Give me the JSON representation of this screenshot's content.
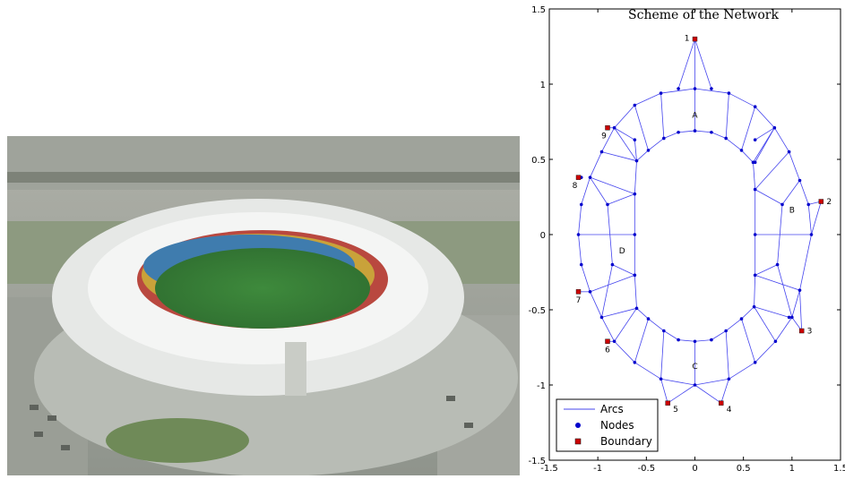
{
  "photo": {
    "description_icon": "stadium-aerial-photo-icon"
  },
  "chart_data": {
    "type": "scatter",
    "title": "Scheme of the Network",
    "xlim": [
      -1.5,
      1.5
    ],
    "ylim": [
      -1.5,
      1.5
    ],
    "xticks": [
      "-1.5",
      "-1",
      "-0.5",
      "0",
      "0.5",
      "1",
      "1.5"
    ],
    "yticks": [
      "-1.5",
      "-1",
      "-0.5",
      "0",
      "0.5",
      "1",
      "1.5"
    ],
    "legend": {
      "placement": "bottom-left",
      "entries": [
        {
          "label": "Arcs",
          "color": "#4444ee"
        },
        {
          "label": "Nodes",
          "color": "#0000cc"
        },
        {
          "label": "Boundary",
          "color": "#cc0000"
        }
      ]
    },
    "region_labels": [
      {
        "text": "A",
        "x": 0.0,
        "y": 0.8
      },
      {
        "text": "B",
        "x": 1.0,
        "y": 0.17
      },
      {
        "text": "C",
        "x": 0.0,
        "y": -0.87
      },
      {
        "text": "D",
        "x": -0.75,
        "y": -0.1
      }
    ],
    "boundary": [
      {
        "label": "1",
        "x": 0.0,
        "y": 1.3
      },
      {
        "label": "2",
        "x": 1.3,
        "y": 0.22
      },
      {
        "label": "3",
        "x": 1.1,
        "y": -0.64
      },
      {
        "label": "4",
        "x": 0.27,
        "y": -1.12
      },
      {
        "label": "5",
        "x": -0.28,
        "y": -1.12
      },
      {
        "label": "7",
        "x": -1.2,
        "y": -0.38
      },
      {
        "label": "6",
        "x": -0.9,
        "y": -0.71
      },
      {
        "label": "8",
        "x": -1.2,
        "y": 0.38
      },
      {
        "label": "9",
        "x": -0.9,
        "y": 0.71
      }
    ],
    "outer_ring": [
      [
        0.0,
        0.97
      ],
      [
        0.35,
        0.94
      ],
      [
        0.62,
        0.85
      ],
      [
        0.82,
        0.71
      ],
      [
        0.97,
        0.55
      ],
      [
        1.08,
        0.36
      ],
      [
        1.17,
        0.2
      ],
      [
        1.2,
        0.0
      ],
      [
        1.08,
        -0.37
      ],
      [
        1.0,
        -0.55
      ],
      [
        0.83,
        -0.71
      ],
      [
        0.62,
        -0.85
      ],
      [
        0.35,
        -0.96
      ],
      [
        0.0,
        -1.0
      ],
      [
        -0.35,
        -0.96
      ],
      [
        -0.62,
        -0.85
      ],
      [
        -0.83,
        -0.71
      ],
      [
        -0.96,
        -0.55
      ],
      [
        -1.08,
        -0.38
      ],
      [
        -1.17,
        -0.2
      ],
      [
        -1.2,
        0.0
      ],
      [
        -1.17,
        0.2
      ],
      [
        -1.08,
        0.38
      ],
      [
        -0.96,
        0.55
      ],
      [
        -0.83,
        0.71
      ],
      [
        -0.62,
        0.86
      ],
      [
        -0.35,
        0.94
      ]
    ],
    "inner_ring": [
      [
        0.0,
        0.69
      ],
      [
        0.17,
        0.68
      ],
      [
        0.32,
        0.64
      ],
      [
        0.48,
        0.56
      ],
      [
        0.6,
        0.48
      ],
      [
        0.62,
        0.3
      ],
      [
        0.62,
        0.0
      ],
      [
        0.62,
        -0.27
      ],
      [
        0.61,
        -0.48
      ],
      [
        0.48,
        -0.56
      ],
      [
        0.32,
        -0.64
      ],
      [
        0.17,
        -0.7
      ],
      [
        0.0,
        -0.71
      ],
      [
        -0.17,
        -0.7
      ],
      [
        -0.32,
        -0.64
      ],
      [
        -0.48,
        -0.56
      ],
      [
        -0.6,
        -0.49
      ],
      [
        -0.62,
        -0.27
      ],
      [
        -0.62,
        0.0
      ],
      [
        -0.62,
        0.27
      ],
      [
        -0.6,
        0.49
      ],
      [
        -0.48,
        0.56
      ],
      [
        -0.32,
        0.64
      ],
      [
        -0.17,
        0.68
      ]
    ],
    "spokes": [
      [
        [
          0.0,
          0.97
        ],
        [
          0.0,
          0.69
        ]
      ],
      [
        [
          0.35,
          0.94
        ],
        [
          0.32,
          0.64
        ]
      ],
      [
        [
          0.62,
          0.85
        ],
        [
          0.48,
          0.56
        ]
      ],
      [
        [
          0.82,
          0.71
        ],
        [
          0.6,
          0.48
        ]
      ],
      [
        [
          0.97,
          0.55
        ],
        [
          0.62,
          0.3
        ]
      ],
      [
        [
          1.2,
          0.0
        ],
        [
          0.62,
          0.0
        ]
      ],
      [
        [
          1.08,
          -0.37
        ],
        [
          0.62,
          -0.27
        ]
      ],
      [
        [
          0.83,
          -0.71
        ],
        [
          0.61,
          -0.48
        ]
      ],
      [
        [
          0.62,
          -0.85
        ],
        [
          0.48,
          -0.56
        ]
      ],
      [
        [
          0.35,
          -0.96
        ],
        [
          0.32,
          -0.64
        ]
      ],
      [
        [
          0.0,
          -1.0
        ],
        [
          0.0,
          -0.71
        ]
      ],
      [
        [
          -0.35,
          -0.96
        ],
        [
          -0.32,
          -0.64
        ]
      ],
      [
        [
          -0.62,
          -0.85
        ],
        [
          -0.48,
          -0.56
        ]
      ],
      [
        [
          -0.83,
          -0.71
        ],
        [
          -0.6,
          -0.49
        ]
      ],
      [
        [
          -1.08,
          -0.38
        ],
        [
          -0.62,
          -0.27
        ]
      ],
      [
        [
          -1.2,
          0.0
        ],
        [
          -0.62,
          0.0
        ]
      ],
      [
        [
          -1.08,
          0.38
        ],
        [
          -0.62,
          0.27
        ]
      ],
      [
        [
          -0.83,
          0.71
        ],
        [
          -0.6,
          0.49
        ]
      ],
      [
        [
          -0.62,
          0.86
        ],
        [
          -0.48,
          0.56
        ]
      ],
      [
        [
          -0.35,
          0.94
        ],
        [
          -0.32,
          0.64
        ]
      ],
      [
        [
          0.82,
          0.71
        ],
        [
          0.62,
          0.48
        ]
      ],
      [
        [
          1.08,
          0.36
        ],
        [
          0.9,
          0.2
        ]
      ],
      [
        [
          0.9,
          0.2
        ],
        [
          0.62,
          0.3
        ]
      ],
      [
        [
          0.9,
          0.2
        ],
        [
          0.85,
          -0.2
        ]
      ],
      [
        [
          0.85,
          -0.2
        ],
        [
          0.62,
          -0.27
        ]
      ],
      [
        [
          0.85,
          -0.2
        ],
        [
          1.0,
          -0.55
        ]
      ],
      [
        [
          -0.9,
          0.2
        ],
        [
          -1.08,
          0.38
        ]
      ],
      [
        [
          -0.9,
          0.2
        ],
        [
          -0.62,
          0.27
        ]
      ],
      [
        [
          -0.9,
          0.2
        ],
        [
          -0.85,
          -0.2
        ]
      ],
      [
        [
          -0.85,
          -0.2
        ],
        [
          -0.62,
          -0.27
        ]
      ],
      [
        [
          -0.85,
          -0.2
        ],
        [
          -0.96,
          -0.55
        ]
      ],
      [
        [
          -0.96,
          0.55
        ],
        [
          -0.6,
          0.49
        ]
      ],
      [
        [
          -0.83,
          0.71
        ],
        [
          -0.62,
          0.63
        ]
      ],
      [
        [
          -0.62,
          0.63
        ],
        [
          -0.6,
          0.49
        ]
      ],
      [
        [
          0.62,
          0.63
        ],
        [
          0.82,
          0.71
        ]
      ],
      [
        [
          -0.96,
          -0.55
        ],
        [
          -0.6,
          -0.49
        ]
      ],
      [
        [
          0.97,
          -0.55
        ],
        [
          0.61,
          -0.48
        ]
      ],
      [
        [
          0.0,
          1.3
        ],
        [
          0.0,
          0.97
        ]
      ],
      [
        [
          0.0,
          1.3
        ],
        [
          -0.17,
          0.97
        ]
      ],
      [
        [
          0.0,
          1.3
        ],
        [
          0.17,
          0.97
        ]
      ],
      [
        [
          1.3,
          0.22
        ],
        [
          1.2,
          0.0
        ]
      ],
      [
        [
          1.3,
          0.22
        ],
        [
          1.17,
          0.2
        ]
      ],
      [
        [
          1.1,
          -0.64
        ],
        [
          1.08,
          -0.37
        ]
      ],
      [
        [
          1.1,
          -0.64
        ],
        [
          1.0,
          -0.55
        ]
      ],
      [
        [
          0.27,
          -1.12
        ],
        [
          0.35,
          -0.96
        ]
      ],
      [
        [
          0.27,
          -1.12
        ],
        [
          0.0,
          -1.0
        ]
      ],
      [
        [
          -0.28,
          -1.12
        ],
        [
          -0.35,
          -0.96
        ]
      ],
      [
        [
          -0.28,
          -1.12
        ],
        [
          0.0,
          -1.0
        ]
      ],
      [
        [
          -1.2,
          -0.38
        ],
        [
          -1.08,
          -0.38
        ]
      ],
      [
        [
          -0.9,
          -0.71
        ],
        [
          -0.83,
          -0.71
        ]
      ],
      [
        [
          -1.2,
          0.38
        ],
        [
          -1.17,
          0.38
        ]
      ],
      [
        [
          -0.9,
          0.71
        ],
        [
          -0.83,
          0.71
        ]
      ]
    ]
  }
}
